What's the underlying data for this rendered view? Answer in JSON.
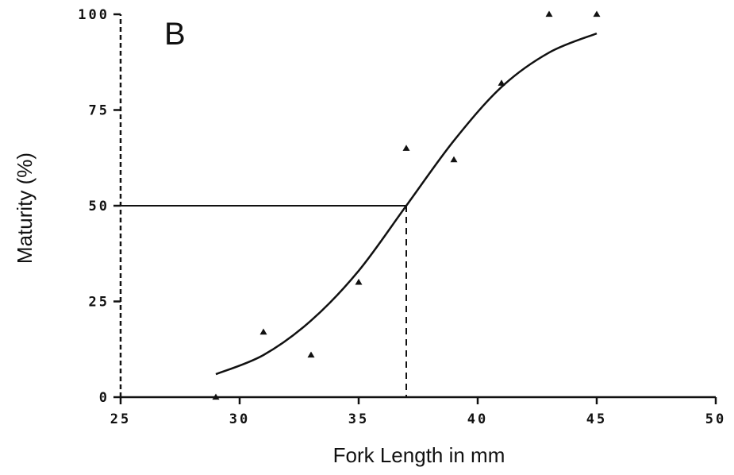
{
  "chart_data": {
    "type": "scatter",
    "panel_label": "B",
    "xlabel": "Fork Length in mm",
    "ylabel": "Maturity (%)",
    "xlim": [
      25,
      50
    ],
    "ylim": [
      0,
      100
    ],
    "x_ticks": [
      25,
      30,
      35,
      40,
      45,
      50
    ],
    "y_ticks": [
      0,
      25,
      50,
      75,
      100
    ],
    "x_tick_labels": [
      "25",
      "30",
      "35",
      "40",
      "45",
      "50"
    ],
    "y_tick_labels": [
      "0",
      "25",
      "50",
      "75",
      "100"
    ],
    "grid": false,
    "legend": "none",
    "series": [
      {
        "kind": "points",
        "marker": "triangle",
        "x": [
          29,
          31,
          33,
          35,
          37,
          39,
          41,
          43,
          45
        ],
        "y": [
          0,
          17,
          11,
          30,
          65,
          62,
          82,
          100,
          100
        ]
      },
      {
        "kind": "fitted-curve",
        "x": [
          29,
          31,
          33,
          35,
          37,
          39,
          41,
          43,
          45
        ],
        "y": [
          6,
          11,
          20,
          33,
          50,
          67,
          81,
          90,
          95
        ]
      }
    ],
    "reference_lines": {
      "l50_x": 37,
      "l50_y": 50
    }
  }
}
